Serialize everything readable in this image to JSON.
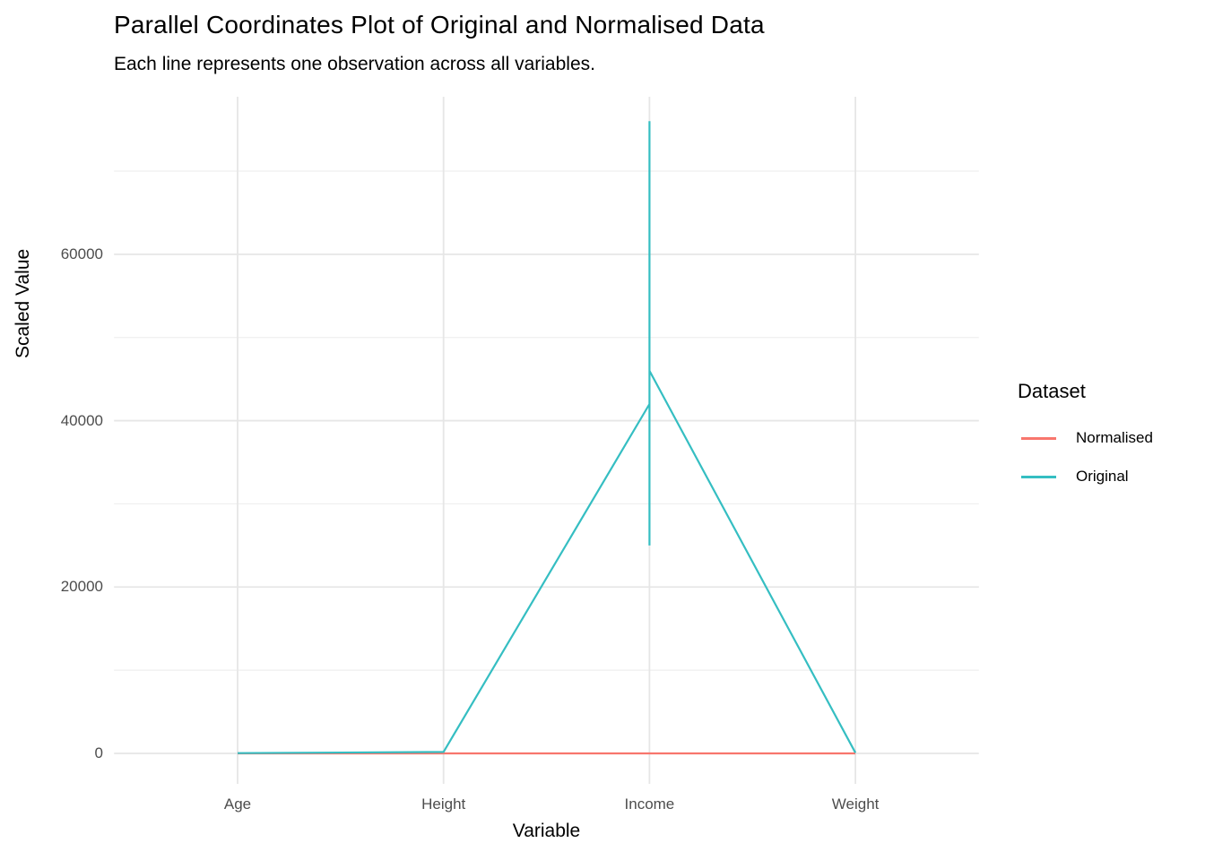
{
  "chart_data": {
    "type": "line",
    "variant": "parallel-coordinates",
    "title": "Parallel Coordinates Plot of Original and Normalised Data",
    "subtitle": "Each line represents one observation across all variables.",
    "xlabel": "Variable",
    "ylabel": "Scaled Value",
    "categories": [
      "Age",
      "Height",
      "Income",
      "Weight"
    ],
    "y_ticks": [
      0,
      20000,
      40000,
      60000
    ],
    "y_minor_ticks": [
      10000,
      30000,
      50000,
      70000
    ],
    "ylim": [
      -3800,
      79800
    ],
    "grid": true,
    "legend": {
      "title": "Dataset",
      "position": "right",
      "entries": [
        {
          "label": "Normalised",
          "color": "#F8766D"
        },
        {
          "label": "Original",
          "color": "#35BEC2"
        }
      ]
    },
    "series": [
      {
        "name": "Normalised",
        "color": "#F8766D",
        "points": [
          [
            "Age",
            0.5
          ],
          [
            "Height",
            0.5
          ],
          [
            "Income",
            0.5
          ],
          [
            "Weight",
            0.5
          ]
        ]
      },
      {
        "name": "Original",
        "color": "#35BEC2",
        "points": [
          [
            "Age",
            35
          ],
          [
            "Height",
            172
          ],
          [
            "Income",
            42000
          ],
          [
            "Income",
            76000
          ],
          [
            "Income",
            25000
          ],
          [
            "Income",
            46000
          ],
          [
            "Weight",
            76
          ]
        ]
      }
    ],
    "colors": {
      "background": "#FFFFFF",
      "grid_major": "#E6E6E6",
      "grid_minor": "#EFEFEF",
      "axis_text": "#4D4D4D",
      "text": "#000000"
    }
  }
}
